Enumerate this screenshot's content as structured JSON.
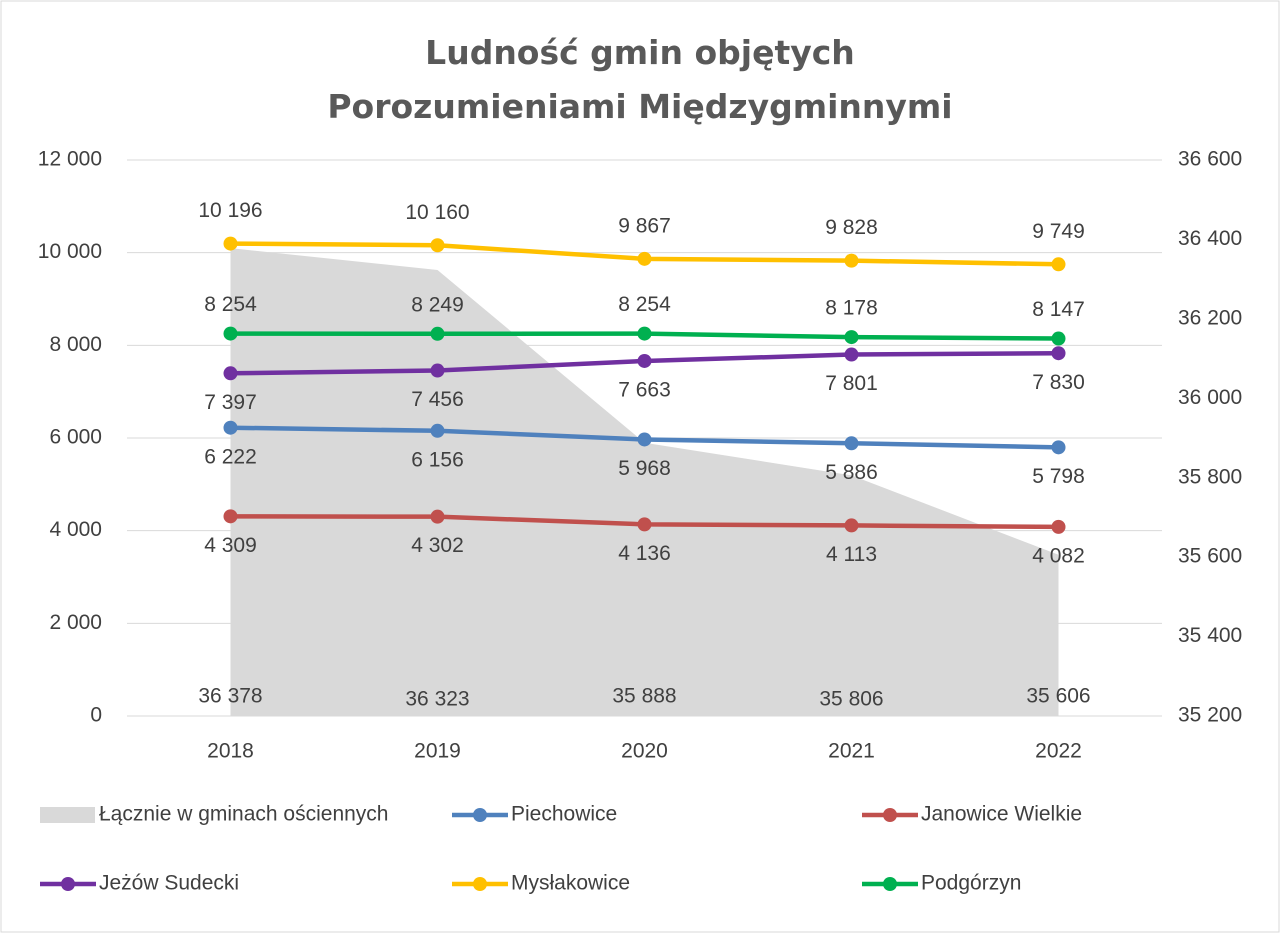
{
  "chart_data": {
    "type": "line",
    "title": "Ludność gmin objętych Porozumieniami Międzygminnymi",
    "categories": [
      "2018",
      "2019",
      "2020",
      "2021",
      "2022"
    ],
    "ylim": [
      0,
      12000
    ],
    "yticks": [
      0,
      {
        "value": 2000,
        "label": "2 000"
      },
      {
        "value": 4000,
        "label": "4 000"
      },
      {
        "value": 6000,
        "label": "6 000"
      },
      {
        "value": 8000,
        "label": "8 000"
      },
      {
        "value": 10000,
        "label": "10 000"
      },
      {
        "value": 12000,
        "label": "12 000"
      }
    ],
    "y2lim": [
      35200,
      36600
    ],
    "y2ticks": [
      {
        "value": 35200,
        "label": "35 200"
      },
      {
        "value": 35400,
        "label": "35 400"
      },
      {
        "value": 35600,
        "label": "35 600"
      },
      {
        "value": 35800,
        "label": "35 800"
      },
      {
        "value": 36000,
        "label": "36 000"
      },
      {
        "value": 36200,
        "label": "36 200"
      },
      {
        "value": 36400,
        "label": "36 400"
      },
      {
        "value": 36600,
        "label": "36 600"
      }
    ],
    "grid": true,
    "legend": "bottom",
    "series": [
      {
        "name": "Łącznie w gminach ościennych",
        "type": "area",
        "axis": "y2",
        "color": "#d9d9d9",
        "values": [
          36378,
          36323,
          35888,
          35806,
          35606
        ],
        "value_labels": [
          "36 378",
          "36 323",
          "35 888",
          "35 806",
          "35 606"
        ]
      },
      {
        "name": "Piechowice",
        "color": "#4f81bd",
        "values": [
          6222,
          6156,
          5968,
          5886,
          5798
        ],
        "value_labels": [
          "6 222",
          "6 156",
          "5 968",
          "5 886",
          "5 798"
        ]
      },
      {
        "name": "Janowice Wielkie",
        "color": "#c0504d",
        "values": [
          4309,
          4302,
          4136,
          4113,
          4082
        ],
        "value_labels": [
          "4 309",
          "4 302",
          "4 136",
          "4 113",
          "4 082"
        ]
      },
      {
        "name": "Jeżów Sudecki",
        "color": "#7030a0",
        "values": [
          7397,
          7456,
          7663,
          7801,
          7830
        ],
        "value_labels": [
          "7 397",
          "7 456",
          "7 663",
          "7 801",
          "7 830"
        ]
      },
      {
        "name": "Mysłakowice",
        "color": "#ffc000",
        "values": [
          10196,
          10160,
          9867,
          9828,
          9749
        ],
        "value_labels": [
          "10 196",
          "10 160",
          "9 867",
          "9 828",
          "9 749"
        ]
      },
      {
        "name": "Podgórzyn",
        "color": "#00b050",
        "values": [
          8254,
          8249,
          8254,
          8178,
          8147
        ],
        "value_labels": [
          "8 254",
          "8 249",
          "8 254",
          "8 178",
          "8 147"
        ]
      }
    ]
  }
}
